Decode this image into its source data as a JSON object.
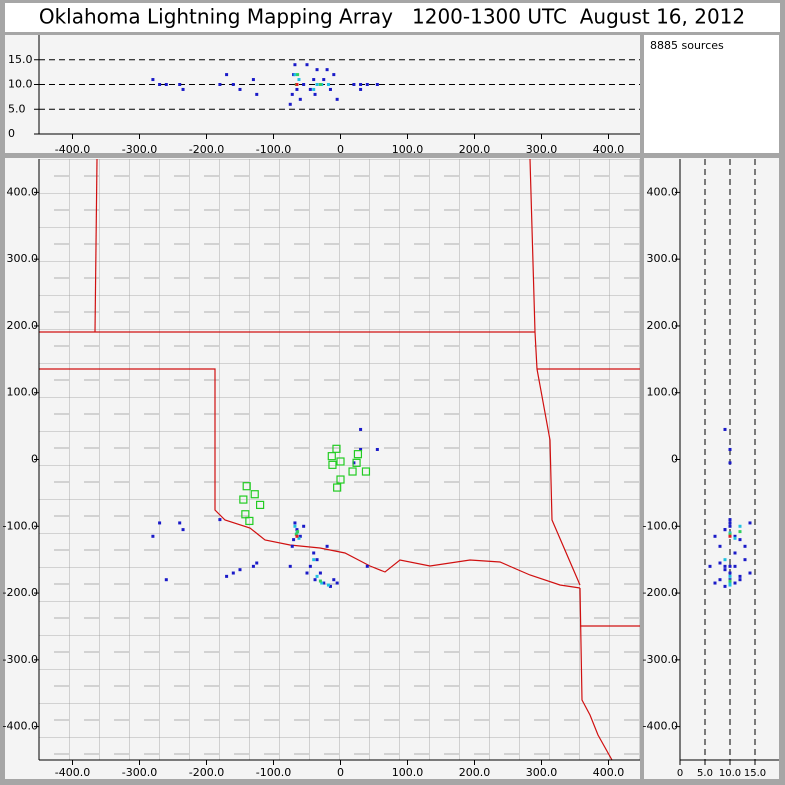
{
  "chart_data": {
    "type": "scatter",
    "title": "Oklahoma Lightning Mapping Array   1200-1300 UTC  August 16, 2012",
    "annotation": "8885 sources",
    "xlim": [
      -450,
      450
    ],
    "ylim": [
      -450,
      450
    ],
    "altlim": [
      0,
      20
    ],
    "xticks": [
      {
        "value": -400,
        "label": "-400.0"
      },
      {
        "value": -300,
        "label": "-300.0"
      },
      {
        "value": -200,
        "label": "-200.0"
      },
      {
        "value": -100,
        "label": "-100.0"
      },
      0,
      {
        "value": 100,
        "label": "100.0"
      },
      {
        "value": 200,
        "label": "200.0"
      },
      {
        "value": 300,
        "label": "300.0"
      },
      {
        "value": 400,
        "label": "400.0"
      }
    ],
    "yticks": [
      {
        "value": -400,
        "label": "-400.0"
      },
      {
        "value": -300,
        "label": "-300.0"
      },
      {
        "value": -200,
        "label": "-200.0"
      },
      {
        "value": -100,
        "label": "-100.0"
      },
      0,
      {
        "value": 100,
        "label": "100.0"
      },
      {
        "value": 200,
        "label": "200.0"
      },
      {
        "value": 300,
        "label": "300.0"
      },
      {
        "value": 400,
        "label": "400.0"
      }
    ],
    "altticks": [
      0,
      {
        "value": 5,
        "label": "5.0"
      },
      {
        "value": 10,
        "label": "10.0"
      },
      {
        "value": 15,
        "label": "15.0"
      }
    ],
    "grid_dashed": true,
    "series": [
      {
        "color": "#1a1ac8",
        "x": [
          -65,
          -70,
          -60,
          -68,
          -55,
          -72,
          -40,
          -45,
          -35,
          -30,
          -38,
          -25,
          -15,
          -10,
          -5,
          -50,
          -160,
          -150,
          -130,
          -125,
          -170,
          -240,
          -235,
          -280,
          -260,
          30,
          20,
          -20,
          -75,
          40,
          55,
          30,
          -180,
          -270
        ],
        "y": [
          -105,
          -120,
          -115,
          -95,
          -100,
          -130,
          -140,
          -160,
          -150,
          -170,
          -180,
          -185,
          -190,
          -180,
          -185,
          -170,
          -170,
          -165,
          -160,
          -155,
          -175,
          -95,
          -105,
          -115,
          -180,
          45,
          -5,
          -130,
          -160,
          -160,
          15,
          15,
          -90,
          -95
        ],
        "alt": [
          9,
          12,
          7,
          14,
          10,
          8,
          11,
          9,
          13,
          10,
          8,
          11,
          9,
          12,
          7,
          14,
          10,
          9,
          11,
          8,
          12,
          10,
          9,
          11,
          10,
          9,
          10,
          13,
          6,
          10,
          10,
          10,
          10,
          10
        ]
      },
      {
        "color": "#20c0e0",
        "x": [
          -65,
          -62,
          -35,
          -28,
          -40,
          -18,
          -68
        ],
        "y": [
          -110,
          -118,
          -175,
          -185,
          -150,
          -188,
          -100
        ],
        "alt": [
          10,
          11,
          10,
          10,
          9,
          10,
          12
        ]
      },
      {
        "color": "#30d060",
        "x": [
          -66,
          -30,
          -64
        ],
        "y": [
          -112,
          -182,
          -108
        ],
        "alt": [
          10,
          10,
          12
        ]
      },
      {
        "color": "#e02020",
        "x": [
          -65
        ],
        "y": [
          -115
        ],
        "alt": [
          10
        ]
      }
    ],
    "stations": {
      "color": "#22cc22",
      "x": [
        -6,
        -13,
        -12,
        0,
        26,
        24,
        38,
        18,
        0,
        -5,
        -140,
        -128,
        -145,
        -120,
        -142,
        -136
      ],
      "y": [
        16,
        5,
        -8,
        -3,
        8,
        -5,
        -18,
        -18,
        -30,
        -42,
        -40,
        -52,
        -60,
        -68,
        -82,
        -92
      ]
    }
  }
}
